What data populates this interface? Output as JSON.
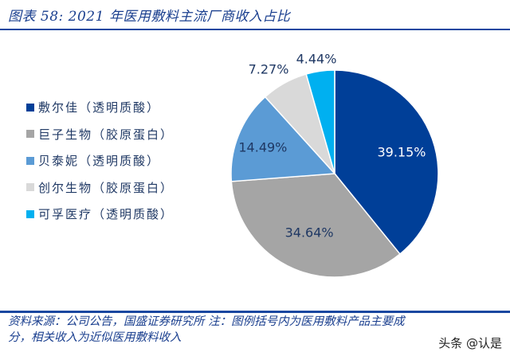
{
  "header": {
    "title": "图表 58:  2021 年医用敷料主流厂商收入占比"
  },
  "chart_data": {
    "type": "pie",
    "title": "2021 年医用敷料主流厂商收入占比",
    "categories": [
      "敷尔佳（透明质酸）",
      "巨子生物（胶原蛋白）",
      "贝泰妮（透明质酸）",
      "创尔生物（胶原蛋白）",
      "可孚医疗（透明质酸）"
    ],
    "values": [
      39.15,
      34.64,
      14.49,
      7.27,
      4.44
    ],
    "labels": [
      "39.15%",
      "34.64%",
      "14.49%",
      "7.27%",
      "4.44%"
    ],
    "colors": [
      "#003f98",
      "#a5a5a5",
      "#5b9bd5",
      "#d9d9d9",
      "#00b0f0"
    ],
    "label_colors": [
      "#ffffff",
      "#1f3864",
      "#1f3864",
      "#1f3864",
      "#1f3864"
    ],
    "start_angle_deg": 0,
    "direction": "clockwise",
    "legend_position": "left"
  },
  "legend": {
    "items": [
      {
        "label": "敷尔佳（透明质酸）",
        "color": "#003f98"
      },
      {
        "label": "巨子生物（胶原蛋白）",
        "color": "#a5a5a5"
      },
      {
        "label": "贝泰妮（透明质酸）",
        "color": "#5b9bd5"
      },
      {
        "label": "创尔生物（胶原蛋白）",
        "color": "#d9d9d9"
      },
      {
        "label": "可孚医疗（透明质酸）",
        "color": "#00b0f0"
      }
    ]
  },
  "footer": {
    "source_line1": "资料来源：公司公告，国盛证券研究所  注：图例括号内为医用敷料产品主要成",
    "source_line2": "分，相关收入为近似医用敷料收入"
  },
  "watermark": "头条 @认是"
}
